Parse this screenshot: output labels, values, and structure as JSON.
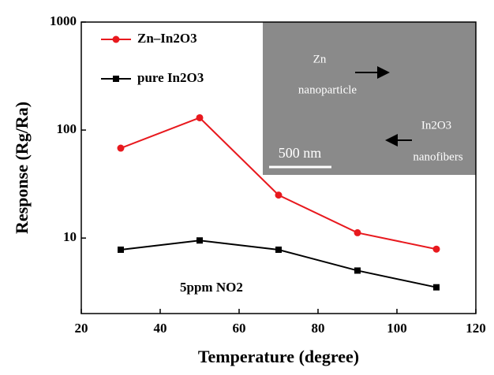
{
  "chart_data": {
    "type": "line",
    "x_label": "Temperature (degree)",
    "y_label": "Response (Rg/Ra)",
    "x": [
      30,
      50,
      70,
      90,
      110
    ],
    "series": [
      {
        "name": "Zn–In2O3",
        "color": "#e8191e",
        "marker": "circle",
        "values": [
          68,
          130,
          25,
          11.2,
          7.9
        ]
      },
      {
        "name": "pure In2O3",
        "color": "#000000",
        "marker": "square",
        "values": [
          7.8,
          9.5,
          7.8,
          5.0,
          3.5
        ]
      }
    ],
    "xlim": [
      20,
      120
    ],
    "xticks": [
      20,
      40,
      60,
      80,
      100,
      120
    ],
    "ylim": [
      2,
      1000
    ],
    "yticks": [
      10,
      100,
      1000
    ],
    "log_y": true,
    "legend": "upper left",
    "annotation": "5ppm NO2",
    "inset_labels": [
      "Zn",
      "nanoparticle",
      "In2O3",
      "nanofibers",
      "500 nm"
    ]
  }
}
